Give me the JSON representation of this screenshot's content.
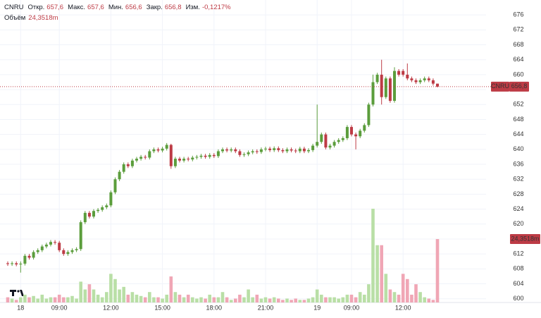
{
  "chart_data": {
    "type": "candlestick",
    "legend": {
      "symbol": "CNRU",
      "items": [
        {
          "name": "Откр.",
          "value": 657.6,
          "label": "657,6"
        },
        {
          "name": "Макс.",
          "value": 657.6,
          "label": "657,6"
        },
        {
          "name": "Мин.",
          "value": 656.6,
          "label": "656,6"
        },
        {
          "name": "Закр.",
          "value": 656.8,
          "label": "656,8"
        },
        {
          "name": "Изм.",
          "value": -0.1217,
          "label": "-0,1217%"
        }
      ],
      "volume_name": "Объём",
      "volume": {
        "value": 24.3518,
        "label": "24,3518m"
      }
    },
    "current_price": {
      "value": 656.8,
      "label": "656,8"
    },
    "categories": [
      null,
      null,
      null,
      "18",
      null,
      null,
      null,
      null,
      null,
      null,
      null,
      null,
      "09:00",
      null,
      null,
      null,
      null,
      null,
      null,
      null,
      null,
      null,
      null,
      null,
      "12:00",
      null,
      null,
      null,
      null,
      null,
      null,
      null,
      null,
      null,
      null,
      null,
      "15:00",
      null,
      null,
      null,
      null,
      null,
      null,
      null,
      null,
      null,
      null,
      null,
      "18:00",
      null,
      null,
      null,
      null,
      null,
      null,
      null,
      null,
      null,
      null,
      null,
      "21:00",
      null,
      null,
      null,
      null,
      null,
      null,
      null,
      null,
      null,
      null,
      null,
      "19",
      null,
      null,
      null,
      null,
      null,
      null,
      null,
      "09:00",
      null,
      null,
      null,
      null,
      null,
      null,
      null,
      null,
      null,
      null,
      null,
      "12:00",
      null,
      null,
      null,
      null,
      null,
      null,
      null,
      null
    ],
    "open": [
      609.5,
      609.3,
      609.5,
      609.2,
      609.4,
      611.5,
      611,
      612.5,
      613,
      614,
      614.5,
      615.2,
      615,
      613,
      612,
      612.5,
      613,
      613.3,
      620.5,
      623,
      622,
      623.5,
      623.8,
      624.5,
      625,
      628.5,
      632,
      634,
      636,
      635.5,
      637,
      637.5,
      638,
      637.8,
      639.5,
      640,
      639.7,
      640.2,
      641.2,
      635.5,
      637.5,
      637,
      637.5,
      637.3,
      637.8,
      638,
      638.3,
      638,
      638.5,
      638.2,
      639.5,
      640,
      639.7,
      640,
      639.5,
      638.5,
      638.7,
      639.2,
      639.5,
      639.3,
      640,
      640.2,
      639.8,
      640.3,
      639.8,
      639.5,
      640,
      639.7,
      639.5,
      640.2,
      639.5,
      639.8,
      641,
      642,
      644,
      640.5,
      641,
      642,
      642.5,
      643,
      646,
      644,
      643.5,
      645,
      646.5,
      652,
      658,
      660,
      654,
      659,
      653,
      661,
      661,
      660,
      659,
      658.5,
      658,
      658.5,
      659,
      658.5,
      657.6
    ],
    "high": [
      610,
      610,
      610,
      610,
      612,
      612,
      613,
      613.5,
      614.5,
      615,
      615.7,
      615.7,
      615.5,
      613.5,
      613,
      613.5,
      613.8,
      621,
      623.5,
      623.5,
      624,
      624.3,
      625,
      625.5,
      629,
      632.5,
      634.5,
      636.5,
      636.5,
      637.5,
      638,
      638.5,
      638.5,
      640,
      640.5,
      640.5,
      640.7,
      641.7,
      641.5,
      638,
      638,
      638,
      638,
      638.3,
      638.5,
      638.8,
      638.8,
      639,
      639,
      640,
      640.5,
      640.5,
      640.5,
      640.5,
      640,
      639.2,
      639.7,
      640,
      640,
      640.5,
      640.7,
      640.7,
      640.8,
      640.8,
      640.3,
      640.5,
      640.5,
      640.2,
      640.7,
      640.7,
      640.3,
      641.5,
      652,
      644.5,
      644.5,
      641.5,
      642.5,
      643,
      643.5,
      646.5,
      646.5,
      644.5,
      645.5,
      647,
      652.5,
      660,
      660.5,
      664,
      659.5,
      659.5,
      662,
      661.5,
      661.5,
      663,
      659.5,
      659,
      659,
      659.5,
      659.5,
      659,
      657.6
    ],
    "low": [
      608.8,
      608.8,
      608.7,
      607,
      608.9,
      610.5,
      610.5,
      612,
      612.5,
      613.5,
      614,
      614.5,
      612.5,
      611.5,
      611.5,
      612,
      612.5,
      612.8,
      620,
      621.5,
      621.5,
      623,
      623.3,
      624,
      624.5,
      628,
      631.5,
      633.5,
      635,
      635,
      636.5,
      637,
      637.3,
      637.3,
      639,
      639.2,
      639.2,
      639.7,
      634.8,
      635,
      636.5,
      636.5,
      636.8,
      636.8,
      637.3,
      637.5,
      637.5,
      637.5,
      637.7,
      637.7,
      639,
      639.2,
      639.2,
      639,
      638,
      638,
      638.2,
      638.7,
      638.8,
      638.8,
      639.5,
      639.3,
      639.3,
      639.3,
      639,
      639,
      639.2,
      639,
      639,
      639,
      639,
      639.3,
      640.5,
      641.5,
      640,
      640,
      640.5,
      641.5,
      642,
      642.5,
      643.5,
      640,
      643,
      644.5,
      646,
      651.5,
      657.5,
      652,
      653.5,
      652.5,
      652.5,
      659.5,
      659.5,
      658.5,
      658,
      657.5,
      657.5,
      658,
      658,
      657.1,
      656.6
    ],
    "close": [
      609.3,
      609.5,
      609.2,
      609.4,
      611.5,
      611,
      612.5,
      613,
      614,
      614.5,
      615.2,
      615,
      613,
      612,
      612.5,
      613,
      613.3,
      620.5,
      623,
      622,
      623.5,
      623.8,
      624.5,
      625,
      628.5,
      632,
      634,
      636,
      635.5,
      637,
      637.5,
      638,
      637.8,
      639.5,
      640,
      639.7,
      640.2,
      641.2,
      635.5,
      637.5,
      637,
      637.5,
      637.3,
      637.8,
      638,
      638.3,
      638,
      638.5,
      638.2,
      639.5,
      640,
      639.7,
      640,
      639.5,
      638.5,
      638.7,
      639.2,
      639.5,
      639.3,
      640,
      640.2,
      639.8,
      640.3,
      639.8,
      639.5,
      640,
      639.7,
      639.5,
      640.2,
      639.5,
      639.8,
      641,
      642,
      644,
      640.5,
      641,
      642,
      642.5,
      643,
      646,
      644,
      643.5,
      645,
      646.5,
      652,
      658,
      660,
      654,
      659,
      653,
      661,
      660,
      660,
      659,
      658.5,
      658,
      658.5,
      659,
      658.5,
      657.6,
      656.8
    ],
    "volume": [
      2,
      1.5,
      1,
      2,
      3,
      2,
      2.5,
      1.5,
      3,
      1.5,
      2,
      2,
      3,
      2,
      2,
      2.5,
      1.5,
      8,
      5,
      7,
      5,
      3,
      2,
      4,
      11,
      9,
      5,
      6,
      3,
      4,
      3,
      2.5,
      2,
      4,
      2,
      2,
      1.5,
      3,
      10,
      4,
      3,
      2,
      3,
      2,
      1.5,
      2,
      1.5,
      3,
      2,
      2,
      4,
      2,
      1,
      1.5,
      3,
      2,
      5,
      2,
      3,
      1.5,
      2,
      1.5,
      2,
      1.5,
      1,
      1.5,
      1,
      1.5,
      1,
      1,
      1.5,
      2,
      5,
      3,
      2,
      2,
      2,
      1.5,
      2,
      3,
      3,
      2,
      4,
      3,
      7,
      36,
      22,
      22,
      11,
      5,
      4,
      3,
      11,
      9,
      3,
      7,
      4,
      2,
      1.5,
      1,
      24.3518
    ],
    "up_color": "#5b9d3c",
    "down_color": "#bd3b45",
    "volume_up_color": "#b9dfa6",
    "volume_down_color": "#f0a6b5",
    "ylim": [
      599,
      680
    ],
    "yticks": [
      600,
      604,
      608,
      612,
      616,
      620,
      624,
      628,
      632,
      636,
      640,
      644,
      648,
      652,
      656,
      660,
      664,
      668,
      672,
      676
    ],
    "grid": true
  }
}
